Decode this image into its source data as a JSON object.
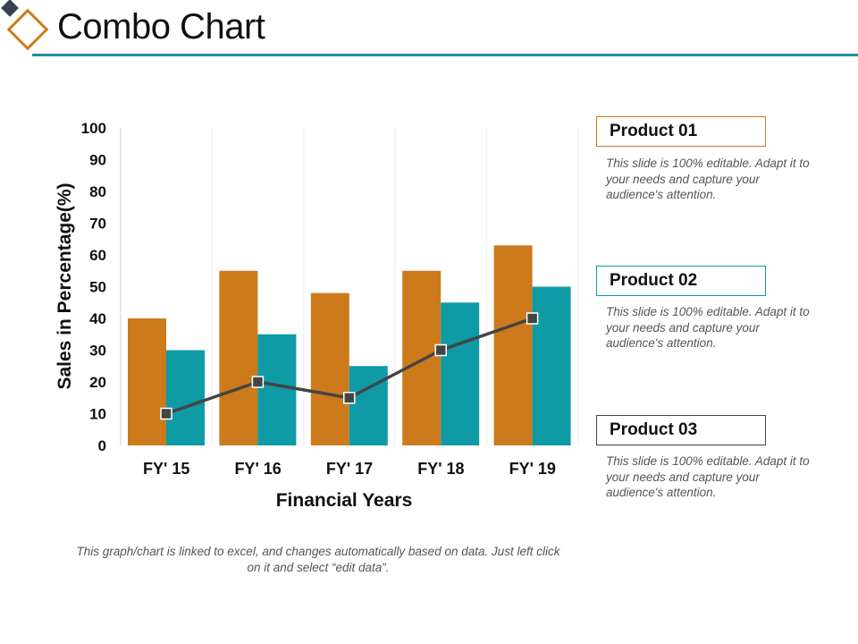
{
  "title": "Combo Chart",
  "colors": {
    "product_01": "#cd7a1c",
    "product_02": "#0e9ba6",
    "product_03": "#444444",
    "rule": "#1e8fa0"
  },
  "chart_data": {
    "type": "bar",
    "categories": [
      "FY' 15",
      "FY' 16",
      "FY' 17",
      "FY' 18",
      "FY' 19"
    ],
    "series": [
      {
        "name": "Product 01",
        "type": "bar",
        "values": [
          40,
          55,
          48,
          55,
          63
        ]
      },
      {
        "name": "Product 02",
        "type": "bar",
        "values": [
          30,
          35,
          25,
          45,
          50
        ]
      },
      {
        "name": "Product 03",
        "type": "line",
        "values": [
          10,
          20,
          15,
          30,
          40
        ]
      }
    ],
    "xlabel": "Financial Years",
    "ylabel": "Sales in Percentage(%)",
    "ylim": [
      0,
      100
    ],
    "yticks": [
      0,
      10,
      20,
      30,
      40,
      50,
      60,
      70,
      80,
      90,
      100
    ],
    "grid": "vertical category separators"
  },
  "legend": [
    {
      "label": "Product 01",
      "description": "This slide is 100% editable. Adapt it to your needs and capture your audience's attention."
    },
    {
      "label": "Product 02",
      "description": "This slide is 100% editable. Adapt it to your needs and capture your audience's attention."
    },
    {
      "label": "Product 03",
      "description": "This slide is 100% editable. Adapt it to your needs and capture your audience's attention."
    }
  ],
  "footnote": "This graph/chart is linked to excel, and changes automatically based on data. Just left click on it and select “edit data”."
}
